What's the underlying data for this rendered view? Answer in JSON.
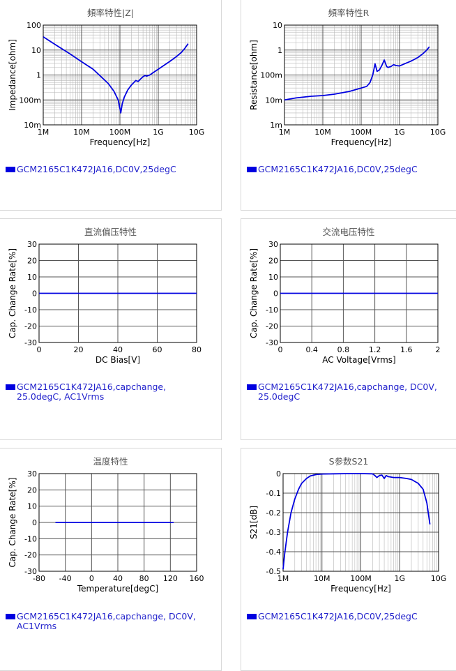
{
  "colors": {
    "series": "#0000e0",
    "legend_text": "#2222cc",
    "grid": "#777777",
    "title": "#555555"
  },
  "charts": [
    {
      "title": "頻率特性|Z|",
      "legend": [
        "GCM2165C1K472JA16,DC0V,25degC"
      ]
    },
    {
      "title": "頻率特性R",
      "legend": [
        "GCM2165C1K472JA16,DC0V,25degC"
      ]
    },
    {
      "title": "直流偏压特性",
      "legend": [
        "GCM2165C1K472JA16,capchange,",
        "25.0degC, AC1Vrms"
      ]
    },
    {
      "title": "交流电压特性",
      "legend": [
        "GCM2165C1K472JA16,capchange, DC0V,",
        "25.0degC"
      ]
    },
    {
      "title": "温度特性",
      "legend": [
        "GCM2165C1K472JA16,capchange, DC0V,",
        "AC1Vrms"
      ]
    },
    {
      "title": "S参数S21",
      "legend": [
        "GCM2165C1K472JA16,DC0V,25degC"
      ]
    }
  ],
  "chart_data": [
    {
      "type": "line",
      "title": "頻率特性|Z|",
      "xlabel": "Frequency[Hz]",
      "ylabel": "Impedance[ohm]",
      "xscale": "log",
      "yscale": "log",
      "xlim": [
        1000000,
        10000000000
      ],
      "ylim": [
        0.01,
        100
      ],
      "xticks": [
        "1M",
        "10M",
        "100M",
        "1G",
        "10G"
      ],
      "yticks": [
        "10m",
        "100m",
        "1",
        "10",
        "100"
      ],
      "grid": true,
      "series": [
        {
          "x": [
            1000000,
            2000000,
            5000000,
            10000000,
            20000000,
            50000000,
            70000000,
            90000000,
            100000000,
            105000000,
            115000000,
            130000000,
            160000000,
            200000000,
            260000000,
            300000000,
            350000000,
            400000000,
            450000000,
            500000000,
            600000000,
            800000000,
            1000000000,
            2000000000,
            3000000000,
            4000000000,
            5000000000,
            6000000000
          ],
          "y": [
            34,
            17,
            7,
            3.4,
            1.7,
            0.45,
            0.22,
            0.1,
            0.045,
            0.03,
            0.07,
            0.13,
            0.25,
            0.4,
            0.6,
            0.55,
            0.7,
            0.85,
            0.95,
            0.9,
            1.0,
            1.35,
            1.7,
            3.5,
            5.5,
            8,
            12,
            18
          ]
        }
      ]
    },
    {
      "type": "line",
      "title": "頻率特性R",
      "xlabel": "Frequency[Hz]",
      "ylabel": "Resistance[ohm]",
      "xscale": "log",
      "yscale": "log",
      "xlim": [
        1000000,
        10000000000
      ],
      "ylim": [
        0.001,
        10
      ],
      "xticks": [
        "1M",
        "10M",
        "100M",
        "1G",
        "10G"
      ],
      "yticks": [
        "1m",
        "10m",
        "100m",
        "1",
        "10"
      ],
      "grid": true,
      "series": [
        {
          "x": [
            1000000,
            2000000,
            5000000,
            10000000,
            20000000,
            50000000,
            100000000,
            140000000,
            170000000,
            200000000,
            230000000,
            260000000,
            300000000,
            350000000,
            400000000,
            460000000,
            500000000,
            600000000,
            700000000,
            800000000,
            1000000000,
            1500000000,
            2000000000,
            3000000000,
            4000000000,
            5000000000,
            6000000000
          ],
          "y": [
            0.01,
            0.012,
            0.014,
            0.015,
            0.017,
            0.022,
            0.03,
            0.035,
            0.05,
            0.1,
            0.28,
            0.14,
            0.16,
            0.25,
            0.4,
            0.22,
            0.2,
            0.22,
            0.26,
            0.24,
            0.23,
            0.3,
            0.36,
            0.5,
            0.7,
            0.95,
            1.35
          ]
        }
      ]
    },
    {
      "type": "line",
      "title": "直流偏压特性",
      "xlabel": "DC Bias[V]",
      "ylabel": "Cap. Change Rate[%]",
      "xlim": [
        0,
        80
      ],
      "ylim": [
        -30,
        30
      ],
      "xticks": [
        "0",
        "20",
        "40",
        "60",
        "80"
      ],
      "yticks": [
        "-30",
        "-20",
        "-10",
        "0",
        "10",
        "20",
        "30"
      ],
      "grid": true,
      "series": [
        {
          "x": [
            0,
            80
          ],
          "y": [
            0,
            0
          ]
        }
      ]
    },
    {
      "type": "line",
      "title": "交流电压特性",
      "xlabel": "AC Voltage[Vrms]",
      "ylabel": "Cap. Change Rate[%]",
      "xlim": [
        0,
        2
      ],
      "ylim": [
        -30,
        30
      ],
      "xticks": [
        "0",
        "0.4",
        "0.8",
        "1.2",
        "1.6",
        "2"
      ],
      "yticks": [
        "-30",
        "-20",
        "-10",
        "0",
        "10",
        "20",
        "30"
      ],
      "grid": true,
      "series": [
        {
          "x": [
            0,
            2
          ],
          "y": [
            0,
            0
          ]
        }
      ]
    },
    {
      "type": "line",
      "title": "温度特性",
      "xlabel": "Temperature[degC]",
      "ylabel": "Cap. Change Rate[%]",
      "xlim": [
        -80,
        160
      ],
      "ylim": [
        -30,
        30
      ],
      "xticks": [
        "-80",
        "-40",
        "0",
        "40",
        "80",
        "120",
        "160"
      ],
      "yticks": [
        "-30",
        "-20",
        "-10",
        "0",
        "10",
        "20",
        "30"
      ],
      "grid": true,
      "series": [
        {
          "x": [
            -55,
            125
          ],
          "y": [
            0,
            0
          ]
        }
      ]
    },
    {
      "type": "line",
      "title": "S参数S21",
      "xlabel": "Frequency[Hz]",
      "ylabel": "S21[dB]",
      "xscale": "log",
      "xlim": [
        1000000,
        10000000000
      ],
      "ylim": [
        -0.5,
        0
      ],
      "xticks": [
        "1M",
        "10M",
        "100M",
        "1G",
        "10G"
      ],
      "yticks": [
        "-0.5",
        "-0.4",
        "-0.3",
        "-0.2",
        "-0.1",
        "0"
      ],
      "grid": true,
      "series": [
        {
          "x": [
            1000000,
            1100000,
            1300000,
            1600000,
            2000000,
            2500000,
            3000000,
            4000000,
            5000000,
            7000000,
            10000000,
            20000000,
            50000000,
            100000000,
            200000000,
            230000000,
            260000000,
            300000000,
            350000000,
            400000000,
            450000000,
            500000000,
            700000000,
            1000000000,
            1500000000,
            2000000000,
            3000000000,
            4000000000,
            5000000000,
            6000000000
          ],
          "y": [
            -0.49,
            -0.41,
            -0.3,
            -0.2,
            -0.13,
            -0.08,
            -0.05,
            -0.025,
            -0.012,
            -0.005,
            -0.002,
            -0.001,
            0,
            0,
            -0.001,
            -0.01,
            -0.02,
            -0.01,
            -0.008,
            -0.025,
            -0.01,
            -0.015,
            -0.02,
            -0.02,
            -0.025,
            -0.03,
            -0.05,
            -0.08,
            -0.15,
            -0.26
          ]
        }
      ]
    }
  ]
}
